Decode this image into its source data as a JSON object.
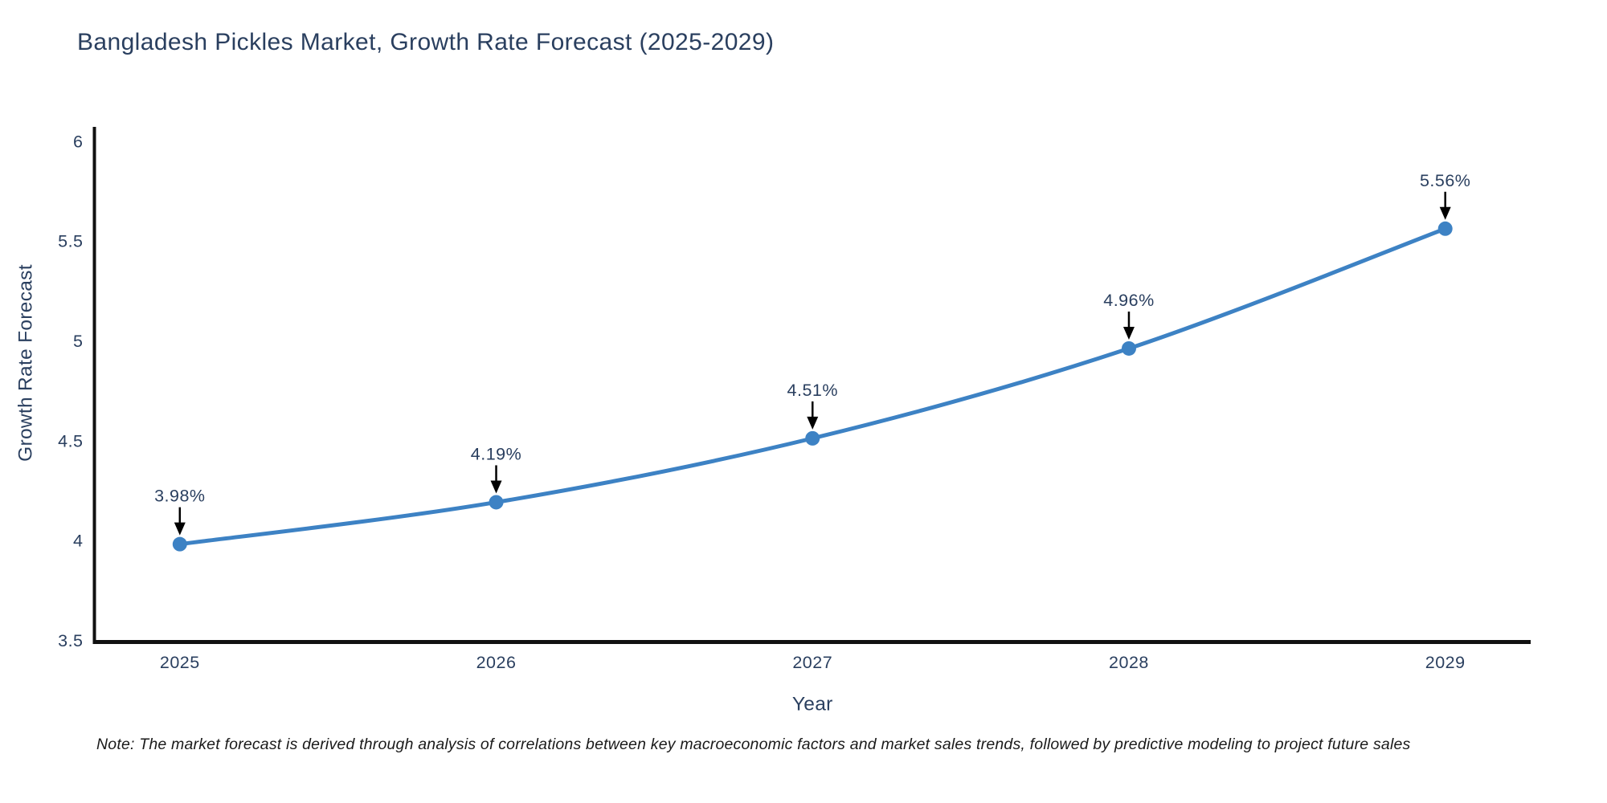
{
  "title": "Bangladesh Pickles Market, Growth Rate Forecast (2025-2029)",
  "note": "Note: The market forecast is derived through analysis of correlations between key macroeconomic factors and market sales trends, followed by predictive modeling to project future sales",
  "chart_data": {
    "type": "line",
    "line_shape": "spline",
    "title": "Bangladesh Pickles Market, Growth Rate Forecast (2025-2029)",
    "xlabel": "Year",
    "ylabel": "Growth Rate Forecast",
    "x": [
      2025,
      2026,
      2027,
      2028,
      2029
    ],
    "series": [
      {
        "name": "Growth Rate Forecast",
        "values": [
          3.98,
          4.19,
          4.51,
          4.96,
          5.56
        ]
      }
    ],
    "point_labels": [
      "3.98%",
      "4.19%",
      "4.51%",
      "4.96%",
      "5.56%"
    ],
    "x_tick_labels": [
      "2025",
      "2026",
      "2027",
      "2028",
      "2029"
    ],
    "y_tick_values": [
      3.5,
      4,
      4.5,
      5,
      5.5,
      6
    ],
    "y_tick_labels": [
      "3.5",
      "4",
      "4.5",
      "5",
      "5.5",
      "6"
    ],
    "xlim": [
      2024.73,
      2029.27
    ],
    "ylim": [
      3.5,
      6.07
    ],
    "grid": false,
    "legend": "none",
    "colors": {
      "line": "#3d82c4",
      "marker": "#3d82c4",
      "axis_line": "#111111",
      "tick_text": "#2a3f5f",
      "axis_title_text": "#2a3f5f",
      "annotation_text": "#2a3f5f",
      "annotation_arrow": "#000000",
      "background": "#ffffff"
    }
  }
}
